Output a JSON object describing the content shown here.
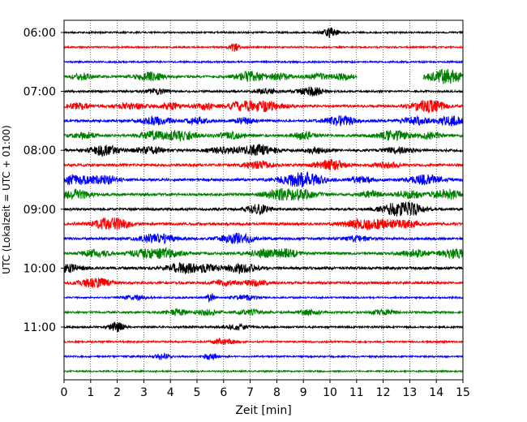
{
  "chart_data": {
    "type": "line",
    "xlabel": "Zeit  [min]",
    "ylabel": "UTC (Lokalzeit = UTC + 01:00)",
    "xlim": [
      0,
      15
    ],
    "x_ticks": [
      "0",
      "1",
      "2",
      "3",
      "4",
      "5",
      "6",
      "7",
      "8",
      "9",
      "10",
      "11",
      "12",
      "13",
      "14",
      "15"
    ],
    "y_ticks": [
      "06:00",
      "07:00",
      "08:00",
      "09:00",
      "10:00",
      "11:00"
    ],
    "grid": "vertical dotted",
    "row_start": "06:00",
    "row_interval_minutes": 15,
    "color_cycle": [
      "#000000",
      "#ff0000",
      "#0000ff",
      "#008000"
    ],
    "series": [
      {
        "start": "06:00",
        "color": "#000000",
        "baseline": 1.0,
        "events": [
          [
            10.0,
            2.6,
            0.2
          ]
        ]
      },
      {
        "start": "06:15",
        "color": "#ff0000",
        "baseline": 1.0,
        "events": [
          [
            6.4,
            2.4,
            0.12
          ]
        ]
      },
      {
        "start": "06:30",
        "color": "#0000ff",
        "baseline": 1.0,
        "events": []
      },
      {
        "start": "06:45",
        "color": "#008000",
        "baseline": 1.4,
        "events": [
          [
            0.7,
            1.6,
            0.3
          ],
          [
            3.2,
            2.2,
            0.4
          ],
          [
            7.0,
            2.6,
            0.4
          ],
          [
            8.1,
            1.6,
            0.3
          ],
          [
            9.5,
            1.4,
            0.3
          ],
          [
            10.5,
            1.6,
            0.3
          ],
          [
            14.2,
            2.6,
            0.4
          ],
          [
            14.6,
            2.2,
            0.3
          ]
        ],
        "gaps": [
          [
            11.0,
            13.5
          ]
        ]
      },
      {
        "start": "07:00",
        "color": "#000000",
        "baseline": 1.2,
        "events": [
          [
            3.5,
            1.4,
            0.3
          ],
          [
            7.6,
            1.3,
            0.3
          ],
          [
            9.3,
            2.4,
            0.35
          ]
        ]
      },
      {
        "start": "07:15",
        "color": "#ff0000",
        "baseline": 1.5,
        "events": [
          [
            0.6,
            1.7,
            0.3
          ],
          [
            2.5,
            1.6,
            0.4
          ],
          [
            4.0,
            1.5,
            0.3
          ],
          [
            5.3,
            1.5,
            0.3
          ],
          [
            6.6,
            2.0,
            0.35
          ],
          [
            7.5,
            2.6,
            0.5
          ],
          [
            13.5,
            2.4,
            0.35
          ],
          [
            14.0,
            1.7,
            0.3
          ]
        ]
      },
      {
        "start": "07:30",
        "color": "#0000ff",
        "baseline": 1.4,
        "events": [
          [
            3.4,
            2.0,
            0.45
          ],
          [
            5.0,
            1.6,
            0.3
          ],
          [
            6.8,
            1.5,
            0.3
          ],
          [
            10.4,
            2.6,
            0.4
          ],
          [
            13.2,
            2.0,
            0.35
          ],
          [
            14.5,
            2.6,
            0.35
          ]
        ]
      },
      {
        "start": "07:45",
        "color": "#008000",
        "baseline": 1.5,
        "events": [
          [
            0.7,
            1.7,
            0.3
          ],
          [
            3.3,
            2.2,
            0.35
          ],
          [
            4.4,
            2.6,
            0.4
          ],
          [
            6.3,
            1.6,
            0.4
          ],
          [
            9.0,
            2.0,
            0.3
          ],
          [
            12.4,
            2.4,
            0.45
          ],
          [
            13.8,
            1.7,
            0.3
          ]
        ]
      },
      {
        "start": "08:00",
        "color": "#000000",
        "baseline": 1.5,
        "events": [
          [
            1.5,
            2.6,
            0.4
          ],
          [
            3.2,
            1.7,
            0.4
          ],
          [
            6.0,
            1.6,
            0.4
          ],
          [
            7.3,
            2.6,
            0.45
          ],
          [
            9.5,
            1.5,
            0.3
          ],
          [
            12.6,
            1.5,
            0.35
          ]
        ]
      },
      {
        "start": "08:15",
        "color": "#ff0000",
        "baseline": 1.5,
        "events": [
          [
            7.3,
            1.9,
            0.4
          ],
          [
            10.0,
            2.6,
            0.4
          ],
          [
            12.2,
            1.5,
            0.3
          ]
        ]
      },
      {
        "start": "08:30",
        "color": "#0000ff",
        "baseline": 1.5,
        "events": [
          [
            0.4,
            2.6,
            0.4
          ],
          [
            1.5,
            2.0,
            0.4
          ],
          [
            8.6,
            2.6,
            0.45
          ],
          [
            9.3,
            2.6,
            0.4
          ],
          [
            11.2,
            1.6,
            0.3
          ],
          [
            13.6,
            2.4,
            0.45
          ]
        ]
      },
      {
        "start": "08:45",
        "color": "#008000",
        "baseline": 1.5,
        "events": [
          [
            0.4,
            2.6,
            0.4
          ],
          [
            8.0,
            2.4,
            0.4
          ],
          [
            8.9,
            2.4,
            0.45
          ],
          [
            11.5,
            1.6,
            0.3
          ],
          [
            13.0,
            1.8,
            0.35
          ],
          [
            14.4,
            2.6,
            0.4
          ]
        ]
      },
      {
        "start": "09:00",
        "color": "#000000",
        "baseline": 1.5,
        "events": [
          [
            7.3,
            2.4,
            0.35
          ],
          [
            12.5,
            2.6,
            0.45
          ],
          [
            13.0,
            2.6,
            0.4
          ]
        ]
      },
      {
        "start": "09:15",
        "color": "#ff0000",
        "baseline": 1.5,
        "events": [
          [
            1.6,
            2.6,
            0.4
          ],
          [
            2.2,
            1.6,
            0.3
          ],
          [
            11.2,
            2.6,
            0.5
          ],
          [
            12.2,
            1.8,
            0.35
          ],
          [
            13.0,
            1.5,
            0.3
          ]
        ]
      },
      {
        "start": "09:30",
        "color": "#0000ff",
        "baseline": 1.5,
        "events": [
          [
            3.5,
            2.6,
            0.45
          ],
          [
            6.5,
            2.6,
            0.45
          ],
          [
            11.0,
            1.5,
            0.3
          ]
        ]
      },
      {
        "start": "09:45",
        "color": "#008000",
        "baseline": 1.6,
        "events": [
          [
            1.2,
            2.0,
            0.35
          ],
          [
            3.0,
            1.8,
            0.35
          ],
          [
            3.8,
            2.4,
            0.4
          ],
          [
            7.5,
            2.0,
            0.4
          ],
          [
            8.4,
            2.0,
            0.35
          ],
          [
            13.2,
            1.8,
            0.35
          ],
          [
            14.7,
            2.6,
            0.35
          ]
        ]
      },
      {
        "start": "10:00",
        "color": "#000000",
        "baseline": 1.6,
        "events": [
          [
            0.2,
            2.0,
            0.3
          ],
          [
            4.5,
            2.6,
            0.45
          ],
          [
            5.5,
            1.6,
            0.3
          ],
          [
            6.7,
            2.8,
            0.35
          ]
        ]
      },
      {
        "start": "10:15",
        "color": "#ff0000",
        "baseline": 1.5,
        "events": [
          [
            1.2,
            2.4,
            0.4
          ],
          [
            6.0,
            1.5,
            0.3
          ],
          [
            7.2,
            1.5,
            0.3
          ]
        ]
      },
      {
        "start": "10:30",
        "color": "#0000ff",
        "baseline": 1.0,
        "events": [
          [
            2.7,
            1.4,
            0.3
          ],
          [
            5.5,
            2.8,
            0.1
          ],
          [
            6.8,
            1.4,
            0.3
          ]
        ]
      },
      {
        "start": "10:45",
        "color": "#008000",
        "baseline": 1.2,
        "events": [
          [
            4.2,
            1.7,
            0.3
          ],
          [
            5.4,
            1.6,
            0.3
          ],
          [
            7.0,
            1.4,
            0.3
          ],
          [
            9.2,
            1.4,
            0.3
          ],
          [
            12.0,
            1.3,
            0.3
          ]
        ]
      },
      {
        "start": "11:00",
        "color": "#000000",
        "baseline": 1.1,
        "events": [
          [
            2.0,
            2.6,
            0.2
          ],
          [
            6.5,
            1.4,
            0.3
          ]
        ]
      },
      {
        "start": "11:15",
        "color": "#ff0000",
        "baseline": 1.0,
        "events": [
          [
            6.0,
            1.8,
            0.3
          ]
        ]
      },
      {
        "start": "11:30",
        "color": "#0000ff",
        "baseline": 1.0,
        "events": [
          [
            3.7,
            1.5,
            0.2
          ],
          [
            5.5,
            1.6,
            0.2
          ]
        ]
      },
      {
        "start": "11:45",
        "color": "#008000",
        "baseline": 0.9,
        "events": []
      }
    ]
  }
}
